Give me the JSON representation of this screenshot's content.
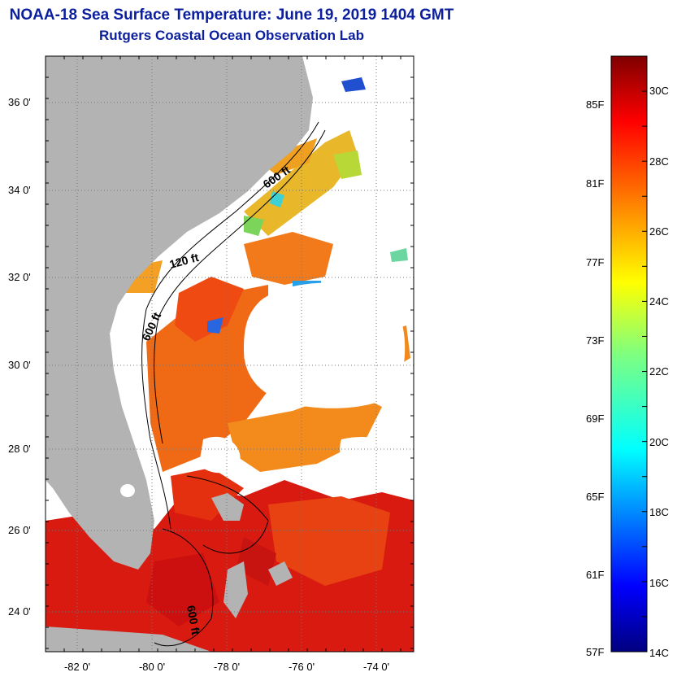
{
  "header": {
    "title": "NOAA-18 Sea Surface Temperature:  June 19, 2019 1404 GMT",
    "subtitle": "Rutgers Coastal Ocean Observation Lab"
  },
  "map": {
    "region": "US Southeast coast and Bahamas",
    "lat_range": [
      23,
      37
    ],
    "lon_range": [
      -83,
      -73
    ],
    "lat_ticks": [
      "36 0'",
      "34 0'",
      "32 0'",
      "30 0'",
      "28 0'",
      "26 0'",
      "24 0'"
    ],
    "lon_ticks": [
      "-82 0'",
      "-80 0'",
      "-78 0'",
      "-76 0'",
      "-74 0'"
    ],
    "contour_labels": [
      "120 ft",
      "600 ft",
      "600 ft",
      "600 ft"
    ],
    "colors": {
      "land": "#b3b3b3",
      "no_data": "#ffffff",
      "grid": "#777777"
    }
  },
  "colorbar": {
    "fahrenheit_labels": [
      "85F",
      "81F",
      "77F",
      "73F",
      "69F",
      "65F",
      "61F",
      "57F"
    ],
    "celsius_labels": [
      "30C",
      "28C",
      "26C",
      "24C",
      "22C",
      "20C",
      "18C",
      "16C",
      "14C"
    ],
    "colormap": "jet",
    "min_c": 14,
    "max_c": 31
  }
}
